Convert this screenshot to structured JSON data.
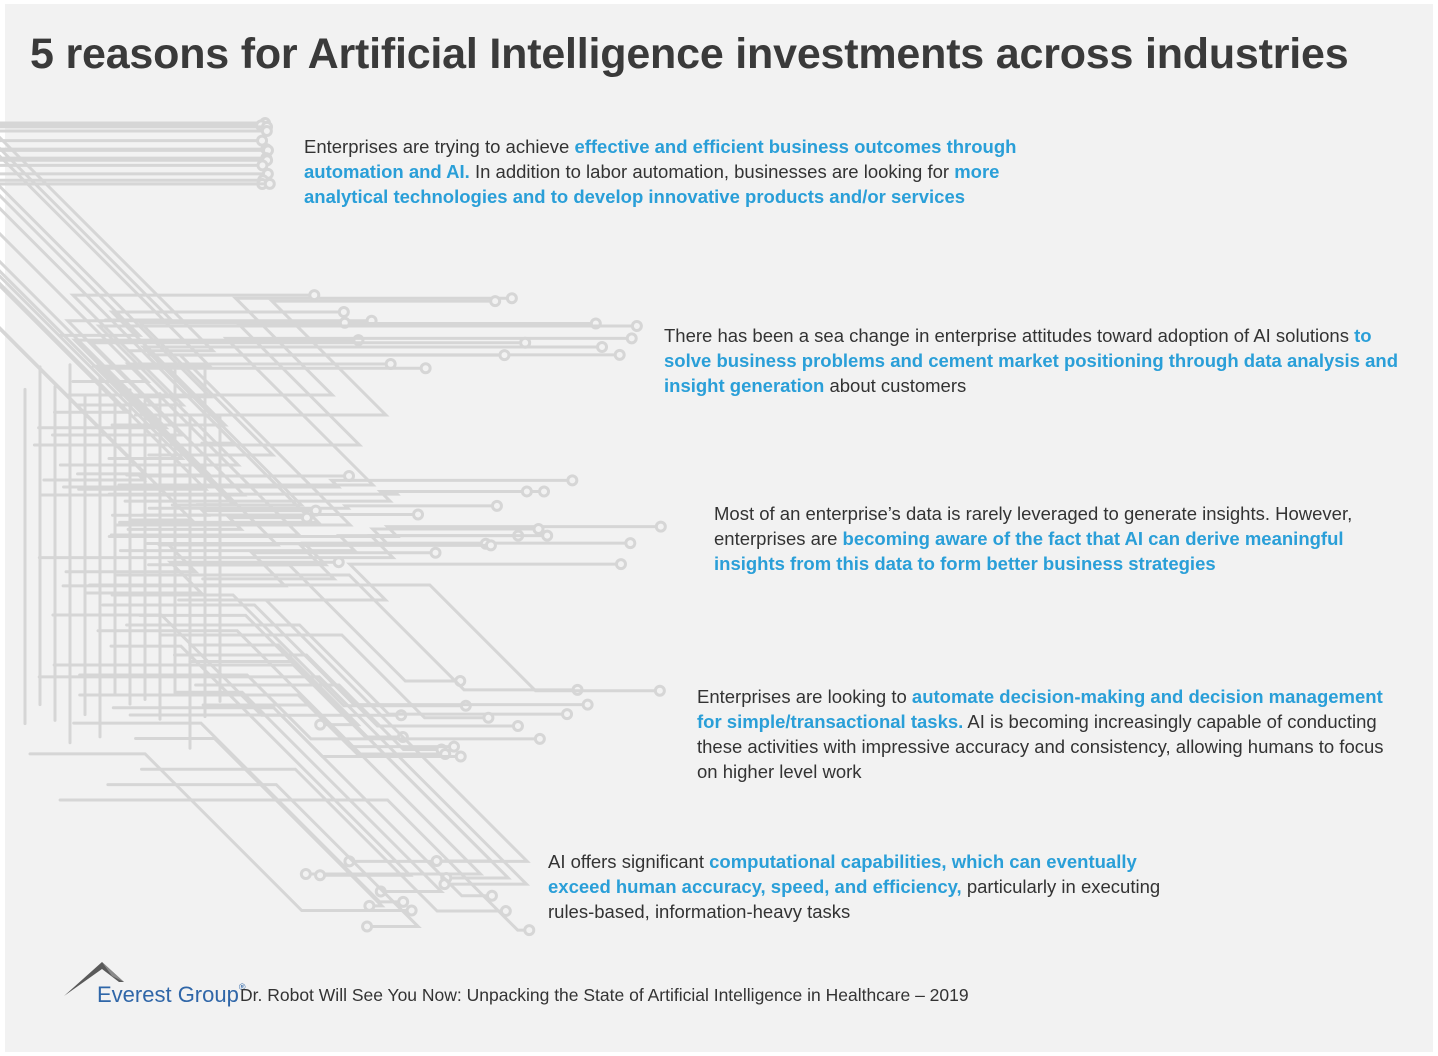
{
  "title": "5 reasons for Artificial Intelligence investments across industries",
  "colors": {
    "accent": "#2a9fd8",
    "text": "#333333",
    "background": "#f2f2f2",
    "circuit": "#d6d6d6",
    "brand": "#2f66a8"
  },
  "reasons": [
    {
      "parts": [
        {
          "text": "Enterprises are trying to achieve ",
          "highlight": false
        },
        {
          "text": "effective and efficient business outcomes through automation and AI.",
          "highlight": true
        },
        {
          "text": " In addition to labor automation, businesses are looking for ",
          "highlight": false
        },
        {
          "text": "more analytical technologies and to develop innovative products and/or services",
          "highlight": true
        }
      ]
    },
    {
      "parts": [
        {
          "text": "There has been a sea change in enterprise attitudes toward adoption of AI solutions ",
          "highlight": false
        },
        {
          "text": "to solve business problems and cement market positioning through data analysis and insight generation",
          "highlight": true
        },
        {
          "text": " about customers",
          "highlight": false
        }
      ]
    },
    {
      "parts": [
        {
          "text": "Most of an enterprise’s data is rarely leveraged to generate insights. However, enterprises are ",
          "highlight": false
        },
        {
          "text": "becoming aware of the fact that AI can derive meaningful insights from this data to form better business strategies",
          "highlight": true
        }
      ]
    },
    {
      "parts": [
        {
          "text": "Enterprises are looking to ",
          "highlight": false
        },
        {
          "text": "automate decision-making and decision management for simple/transactional tasks.",
          "highlight": true
        },
        {
          "text": " AI is becoming increasingly capable of conducting these activities with impressive accuracy and consistency, allowing humans to focus on higher level work",
          "highlight": false
        }
      ]
    },
    {
      "parts": [
        {
          "text": "AI offers significant ",
          "highlight": false
        },
        {
          "text": "computational capabilities, which can eventually exceed human accuracy, speed, and efficiency,",
          "highlight": true
        },
        {
          "text": " particularly in executing rules-based, information-heavy tasks",
          "highlight": false
        }
      ]
    }
  ],
  "footer": {
    "brand": "Everest Group",
    "registered": "®",
    "source": "Dr. Robot Will See You Now: Unpacking the State of Artificial Intelligence in Healthcare – 2019",
    "logo_icon": "mountain-peak-icon"
  },
  "background_graphic": "circuit-board-arrows-icon"
}
